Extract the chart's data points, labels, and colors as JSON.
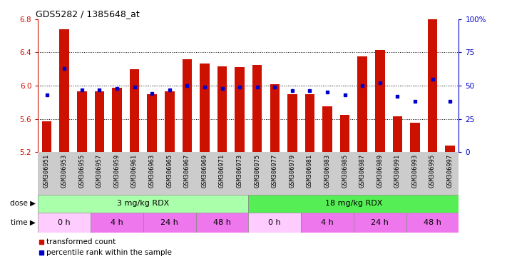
{
  "title": "GDS5282 / 1385648_at",
  "samples": [
    "GSM306951",
    "GSM306953",
    "GSM306955",
    "GSM306957",
    "GSM306959",
    "GSM306961",
    "GSM306963",
    "GSM306965",
    "GSM306967",
    "GSM306969",
    "GSM306971",
    "GSM306973",
    "GSM306975",
    "GSM306977",
    "GSM306979",
    "GSM306981",
    "GSM306983",
    "GSM306985",
    "GSM306987",
    "GSM306989",
    "GSM306991",
    "GSM306993",
    "GSM306995",
    "GSM306997"
  ],
  "bar_values": [
    5.57,
    6.68,
    5.93,
    5.93,
    5.97,
    6.2,
    5.9,
    5.93,
    6.32,
    6.27,
    6.23,
    6.22,
    6.25,
    6.02,
    5.9,
    5.9,
    5.75,
    5.65,
    6.35,
    6.43,
    5.63,
    5.55,
    6.8,
    5.28
  ],
  "percentile_values": [
    43,
    63,
    47,
    47,
    48,
    49,
    44,
    47,
    50,
    49,
    48,
    49,
    49,
    49,
    46,
    46,
    45,
    43,
    50,
    52,
    42,
    38,
    55,
    38
  ],
  "y_min": 5.2,
  "y_max": 6.8,
  "y_ticks": [
    5.2,
    5.6,
    6.0,
    6.4,
    6.8
  ],
  "right_y_ticks": [
    0,
    25,
    50,
    75,
    100
  ],
  "bar_color": "#CC1100",
  "blue_color": "#0000CC",
  "tick_label_bg": "#CCCCCC",
  "dose_groups": [
    {
      "label": "3 mg/kg RDX",
      "start": 0,
      "end": 12,
      "color": "#AAFFAA"
    },
    {
      "label": "18 mg/kg RDX",
      "start": 12,
      "end": 24,
      "color": "#55EE55"
    }
  ],
  "time_groups": [
    {
      "label": "0 h",
      "start": 0,
      "end": 3,
      "color": "#FFCCFF"
    },
    {
      "label": "4 h",
      "start": 3,
      "end": 6,
      "color": "#FF66FF"
    },
    {
      "label": "24 h",
      "start": 6,
      "end": 9,
      "color": "#FF66FF"
    },
    {
      "label": "48 h",
      "start": 9,
      "end": 12,
      "color": "#FF66FF"
    },
    {
      "label": "0 h",
      "start": 12,
      "end": 15,
      "color": "#FFCCFF"
    },
    {
      "label": "4 h",
      "start": 15,
      "end": 18,
      "color": "#FF66FF"
    },
    {
      "label": "24 h",
      "start": 18,
      "end": 21,
      "color": "#FF66FF"
    },
    {
      "label": "48 h",
      "start": 21,
      "end": 24,
      "color": "#FF66FF"
    }
  ],
  "legend_items": [
    {
      "label": "transformed count",
      "color": "#CC1100"
    },
    {
      "label": "percentile rank within the sample",
      "color": "#0000CC"
    }
  ]
}
